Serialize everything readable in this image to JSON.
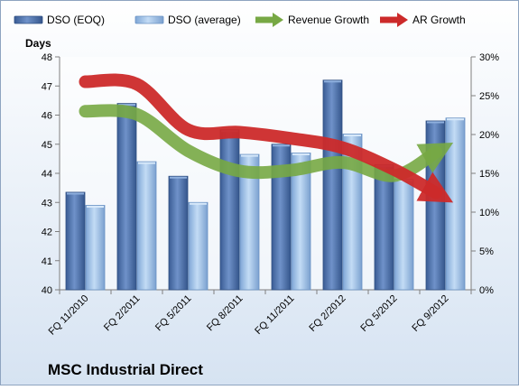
{
  "chart_data": {
    "type": "bar",
    "title": "MSC Industrial Direct",
    "ylabel_left": "Days",
    "categories": [
      "FQ 11/2010",
      "FQ 2/2011",
      "FQ 5/2011",
      "FQ 8/2011",
      "FQ 11/2011",
      "FQ 2/2012",
      "FQ 5/2012",
      "FQ 9/2012"
    ],
    "ylim_left": [
      40,
      48
    ],
    "yticks_left": [
      "40",
      "41",
      "42",
      "43",
      "44",
      "45",
      "46",
      "47",
      "48"
    ],
    "ylim_right": [
      0,
      30
    ],
    "yticks_right": [
      "0%",
      "5%",
      "10%",
      "15%",
      "20%",
      "25%",
      "30%"
    ],
    "series": [
      {
        "name": "DSO (EOQ)",
        "kind": "bar",
        "axis": "left",
        "color": "#4a6ea8",
        "values": [
          43.35,
          46.4,
          43.9,
          45.5,
          45.0,
          47.2,
          44.3,
          45.8
        ]
      },
      {
        "name": "DSO (average)",
        "kind": "bar",
        "axis": "left",
        "color": "#9dc1e8",
        "values": [
          42.9,
          44.4,
          43.0,
          44.65,
          44.7,
          45.35,
          43.8,
          45.9
        ]
      },
      {
        "name": "Revenue Growth",
        "kind": "line",
        "axis": "right",
        "color": "#77a844",
        "values": [
          23.0,
          22.6,
          17.9,
          15.3,
          15.4,
          16.4,
          14.7,
          18.4
        ]
      },
      {
        "name": "AR Growth",
        "kind": "line",
        "axis": "right",
        "color": "#cc2a2a",
        "values": [
          26.8,
          26.5,
          20.6,
          20.3,
          19.5,
          18.3,
          15.5,
          11.8
        ]
      }
    ],
    "grid": false,
    "legend": "top"
  }
}
